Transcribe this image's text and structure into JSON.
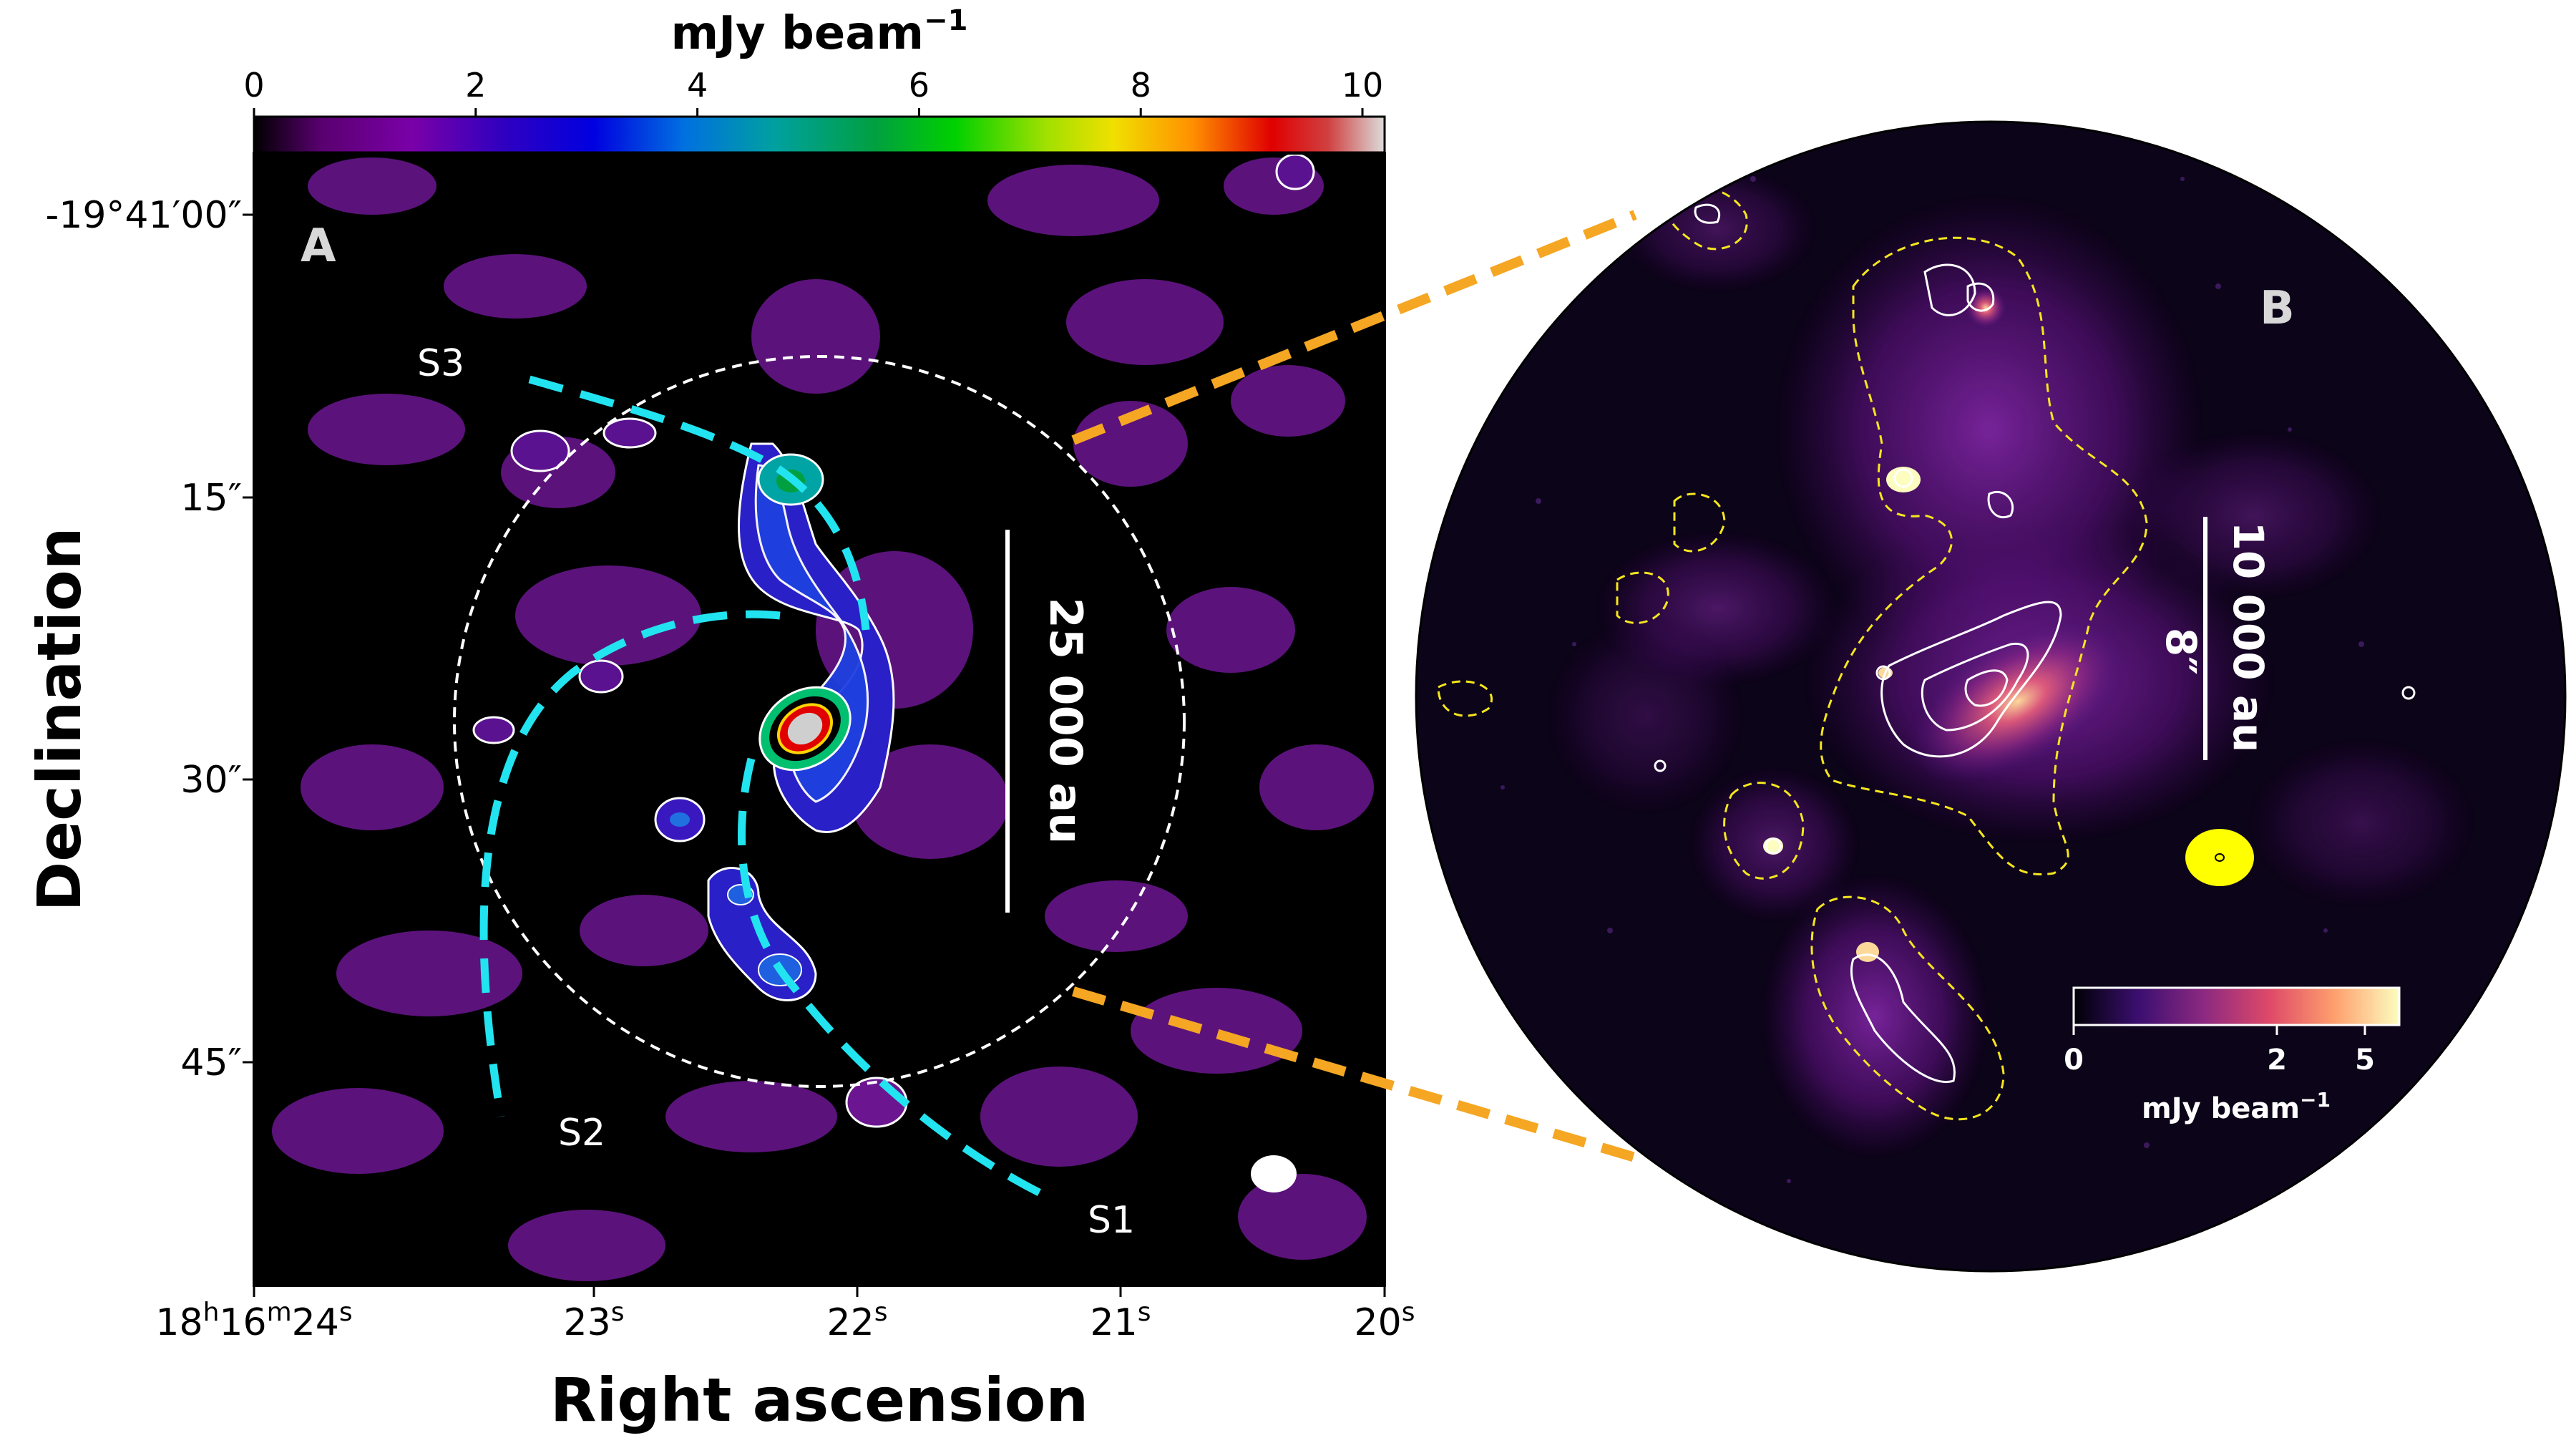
{
  "panel_a": {
    "label": "A",
    "colorbar": {
      "unit": "mJy beam",
      "unit_exponent": "−1",
      "ticks": [
        "0",
        "2",
        "4",
        "6",
        "8",
        "10"
      ],
      "range": [
        0,
        10.2
      ]
    },
    "axes": {
      "xlabel": "Right ascension",
      "ylabel": "Declination",
      "xticks": [
        {
          "base": "18",
          "h": "h",
          "m1": "16",
          "m": "m",
          "s1": "24",
          "s": "s"
        },
        {
          "base": "23",
          "s": "s"
        },
        {
          "base": "22",
          "s": "s"
        },
        {
          "base": "21",
          "s": "s"
        },
        {
          "base": "20",
          "s": "s"
        }
      ],
      "yticks": [
        "-19°41′00″",
        "15″",
        "30″",
        "45″"
      ]
    },
    "arcs": [
      "S1",
      "S2",
      "S3"
    ],
    "scale_bar": "25 000 au",
    "colors": {
      "arc": "#22e4f0",
      "contour": "#ffffff",
      "background": "#000000",
      "emission": "#7a1a9c"
    }
  },
  "panel_b": {
    "label": "B",
    "scale_bar_au": "10 000 au",
    "scale_bar_arcsec": "8″",
    "colorbar": {
      "ticks": [
        "0",
        "2",
        "5"
      ],
      "unit": "mJy beam",
      "unit_exponent": "−1"
    },
    "colors": {
      "contour_dashed": "#f5e61e",
      "contour": "#ffffff",
      "beam": "#ffff00",
      "zoom_lines": "#f5a623"
    }
  }
}
